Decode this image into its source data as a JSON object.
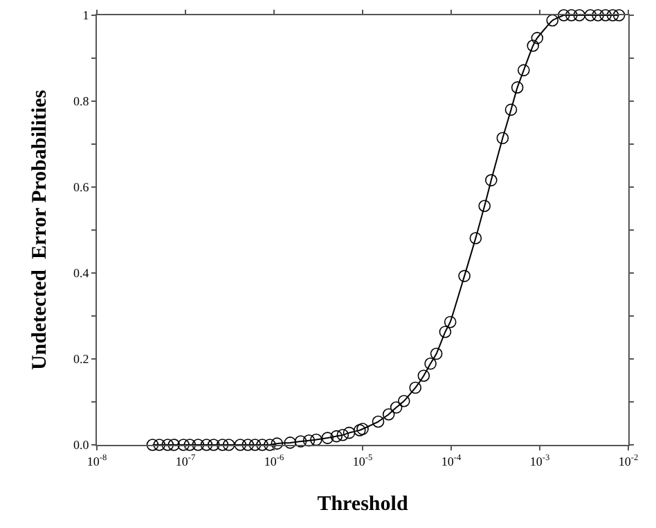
{
  "chart_data": {
    "type": "line",
    "xlabel": "Threshold",
    "ylabel": "Undetected  Error Probabilities",
    "log": "x",
    "marker": "circle",
    "line_style": "solid",
    "xlim": [
      1e-08,
      0.01
    ],
    "xticks": [
      {
        "value": 1e-08,
        "label": "10$^{-8}$"
      },
      {
        "value": 1e-07,
        "label": "10$^{-7}$"
      },
      {
        "value": 1e-06,
        "label": "10$^{-6}$"
      },
      {
        "value": 1e-05,
        "label": "10$^{-5}$"
      },
      {
        "value": 0.0001,
        "label": "10$^{-4}$"
      },
      {
        "value": 0.001,
        "label": "10$^{-3}$"
      },
      {
        "value": 0.01,
        "label": "10$^{-2}$"
      }
    ],
    "ylim": [
      0,
      1
    ],
    "yticks": [
      {
        "value": 0,
        "label": "0.0"
      },
      {
        "value": 0.1,
        "label": null
      },
      0.2,
      {
        "value": 0.3,
        "label": null
      },
      0.4,
      {
        "value": 0.5,
        "label": null
      },
      0.6,
      {
        "value": 0.7,
        "label": null
      },
      0.8,
      {
        "value": 0.9,
        "label": null
      },
      1
    ],
    "series": [
      {
        "color": "#000000",
        "x": [
          4.25e-08,
          5.07e-08,
          6.3e-08,
          7.4e-08,
          9.5e-08,
          1.12e-07,
          1.39e-07,
          1.73e-07,
          2.08e-07,
          2.62e-07,
          3.09e-07,
          4.16e-07,
          5.07e-07,
          6.1e-07,
          7.36e-07,
          8.96e-07,
          1.08e-06,
          1.52e-06,
          2e-06,
          2.48e-06,
          2.99e-06,
          4.02e-06,
          5.07e-06,
          5.97e-06,
          7.04e-06,
          9.27e-06,
          1e-05,
          1.5e-05,
          1.97e-05,
          2.4e-05,
          2.93e-05,
          3.94e-05,
          4.9e-05,
          5.84e-05,
          6.81e-05,
          8.57e-05,
          9.77e-05,
          0.000141,
          0.000189,
          0.000238,
          0.000283,
          0.000381,
          0.000474,
          0.000559,
          0.000659,
          0.000839,
          0.000936,
          0.00139,
          0.00187,
          0.00228,
          0.0028,
          0.00373,
          0.00454,
          0.00553,
          0.00667,
          0.00786
        ],
        "values": [
          0,
          0,
          0,
          0,
          0,
          0,
          0,
          0,
          0,
          0,
          0,
          0,
          0,
          0,
          0,
          0,
          0.003,
          0.005,
          0.008,
          0.01,
          0.012,
          0.016,
          0.02,
          0.023,
          0.028,
          0.034,
          0.037,
          0.054,
          0.071,
          0.087,
          0.102,
          0.133,
          0.161,
          0.189,
          0.212,
          0.263,
          0.286,
          0.393,
          0.481,
          0.556,
          0.616,
          0.714,
          0.78,
          0.832,
          0.872,
          0.929,
          0.947,
          0.988,
          1,
          1,
          1,
          1,
          1,
          1,
          1,
          1
        ]
      }
    ]
  }
}
